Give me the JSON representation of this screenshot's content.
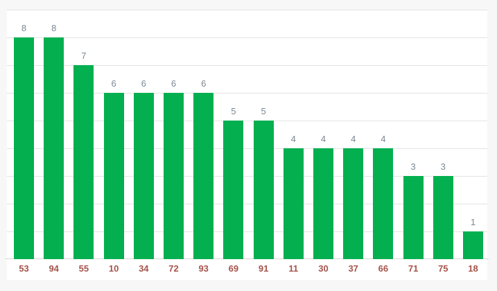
{
  "chart_data": {
    "type": "bar",
    "categories": [
      "53",
      "94",
      "55",
      "10",
      "34",
      "72",
      "93",
      "69",
      "91",
      "11",
      "30",
      "37",
      "66",
      "71",
      "75",
      "18"
    ],
    "values": [
      8,
      8,
      7,
      6,
      6,
      6,
      6,
      5,
      5,
      4,
      4,
      4,
      4,
      3,
      3,
      1
    ],
    "value_labels": [
      "8",
      "8",
      "7",
      "6",
      "6",
      "6",
      "6",
      "5",
      "5",
      "4",
      "4",
      "4",
      "4",
      "3",
      "3",
      "1"
    ],
    "ylim": [
      0,
      9
    ],
    "grid": true,
    "legend": "none",
    "colors": {
      "bar": "#04af50",
      "value_label": "#7b8894",
      "category_label": "#a5544a",
      "gridline": "#e3e3e3",
      "baseline": "#d6d6d6",
      "page_background": "#f7f7f7",
      "plot_background": "#ffffff"
    }
  }
}
